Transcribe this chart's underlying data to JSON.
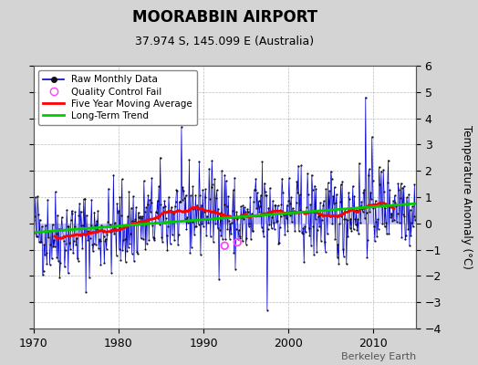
{
  "title": "MOORABBIN AIRPORT",
  "subtitle": "37.974 S, 145.099 E (Australia)",
  "ylabel": "Temperature Anomaly (°C)",
  "watermark": "Berkeley Earth",
  "xlim": [
    1970,
    2015
  ],
  "ylim": [
    -4,
    6
  ],
  "yticks": [
    -4,
    -3,
    -2,
    -1,
    0,
    1,
    2,
    3,
    4,
    5,
    6
  ],
  "xticks": [
    1970,
    1980,
    1990,
    2000,
    2010
  ],
  "bg_color": "#d4d4d4",
  "plot_bg_color": "#ffffff",
  "line_color": "#0000cc",
  "fill_color": "#8888ff",
  "dot_color": "#111111",
  "ma_color": "#ff0000",
  "trend_color": "#00cc00",
  "qc_color": "#ff44ff",
  "seed": 42,
  "start_year": 1970,
  "end_year": 2015,
  "months_per_year": 12,
  "qc_fail_times": [
    1992.5,
    1994.0
  ],
  "qc_fail_values": [
    -0.85,
    -0.72
  ]
}
